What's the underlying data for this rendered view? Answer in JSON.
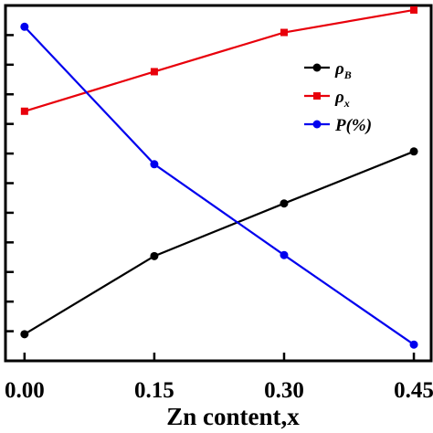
{
  "chart_data": {
    "type": "line",
    "xlabel": "Zn content,x",
    "x": [
      0.0,
      0.15,
      0.3,
      0.45
    ],
    "x_tick_labels": [
      "0.00",
      "0.15",
      "0.30",
      "0.45"
    ],
    "xlim": [
      -0.022,
      0.47
    ],
    "y_normalized_range": [
      0,
      1
    ],
    "y_tick_count": 12,
    "grid": false,
    "legend_position": "top-right",
    "series": [
      {
        "name": "ρB",
        "legend_main": "ρ",
        "legend_sub": "B",
        "color": "#000000",
        "marker": "circle",
        "values": [
          0.025,
          0.258,
          0.415,
          0.57
        ]
      },
      {
        "name": "ρx",
        "legend_main": "ρ",
        "legend_sub": "x",
        "color": "#e8000b",
        "marker": "square",
        "values": [
          0.69,
          0.808,
          0.925,
          0.992
        ]
      },
      {
        "name": "P(%)",
        "legend_main": "P(%)",
        "legend_sub": "",
        "color": "#0000ee",
        "marker": "circle",
        "values": [
          0.942,
          0.532,
          0.261,
          -0.006
        ]
      }
    ]
  }
}
